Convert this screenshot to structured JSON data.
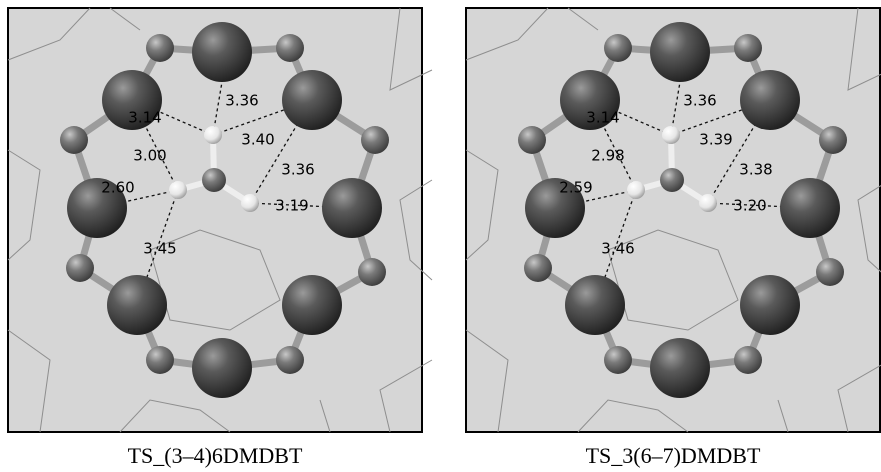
{
  "panels": [
    {
      "caption": "TS_(3–4)6DMDBT",
      "distances": [
        "3.14",
        "3.36",
        "3.40",
        "3.00",
        "3.36",
        "2.60",
        "3.19",
        "3.45"
      ]
    },
    {
      "caption": "TS_3(6–7)DMDBT",
      "distances": [
        "3.14",
        "3.36",
        "3.39",
        "2.98",
        "3.38",
        "2.59",
        "3.20",
        "3.46"
      ]
    }
  ]
}
